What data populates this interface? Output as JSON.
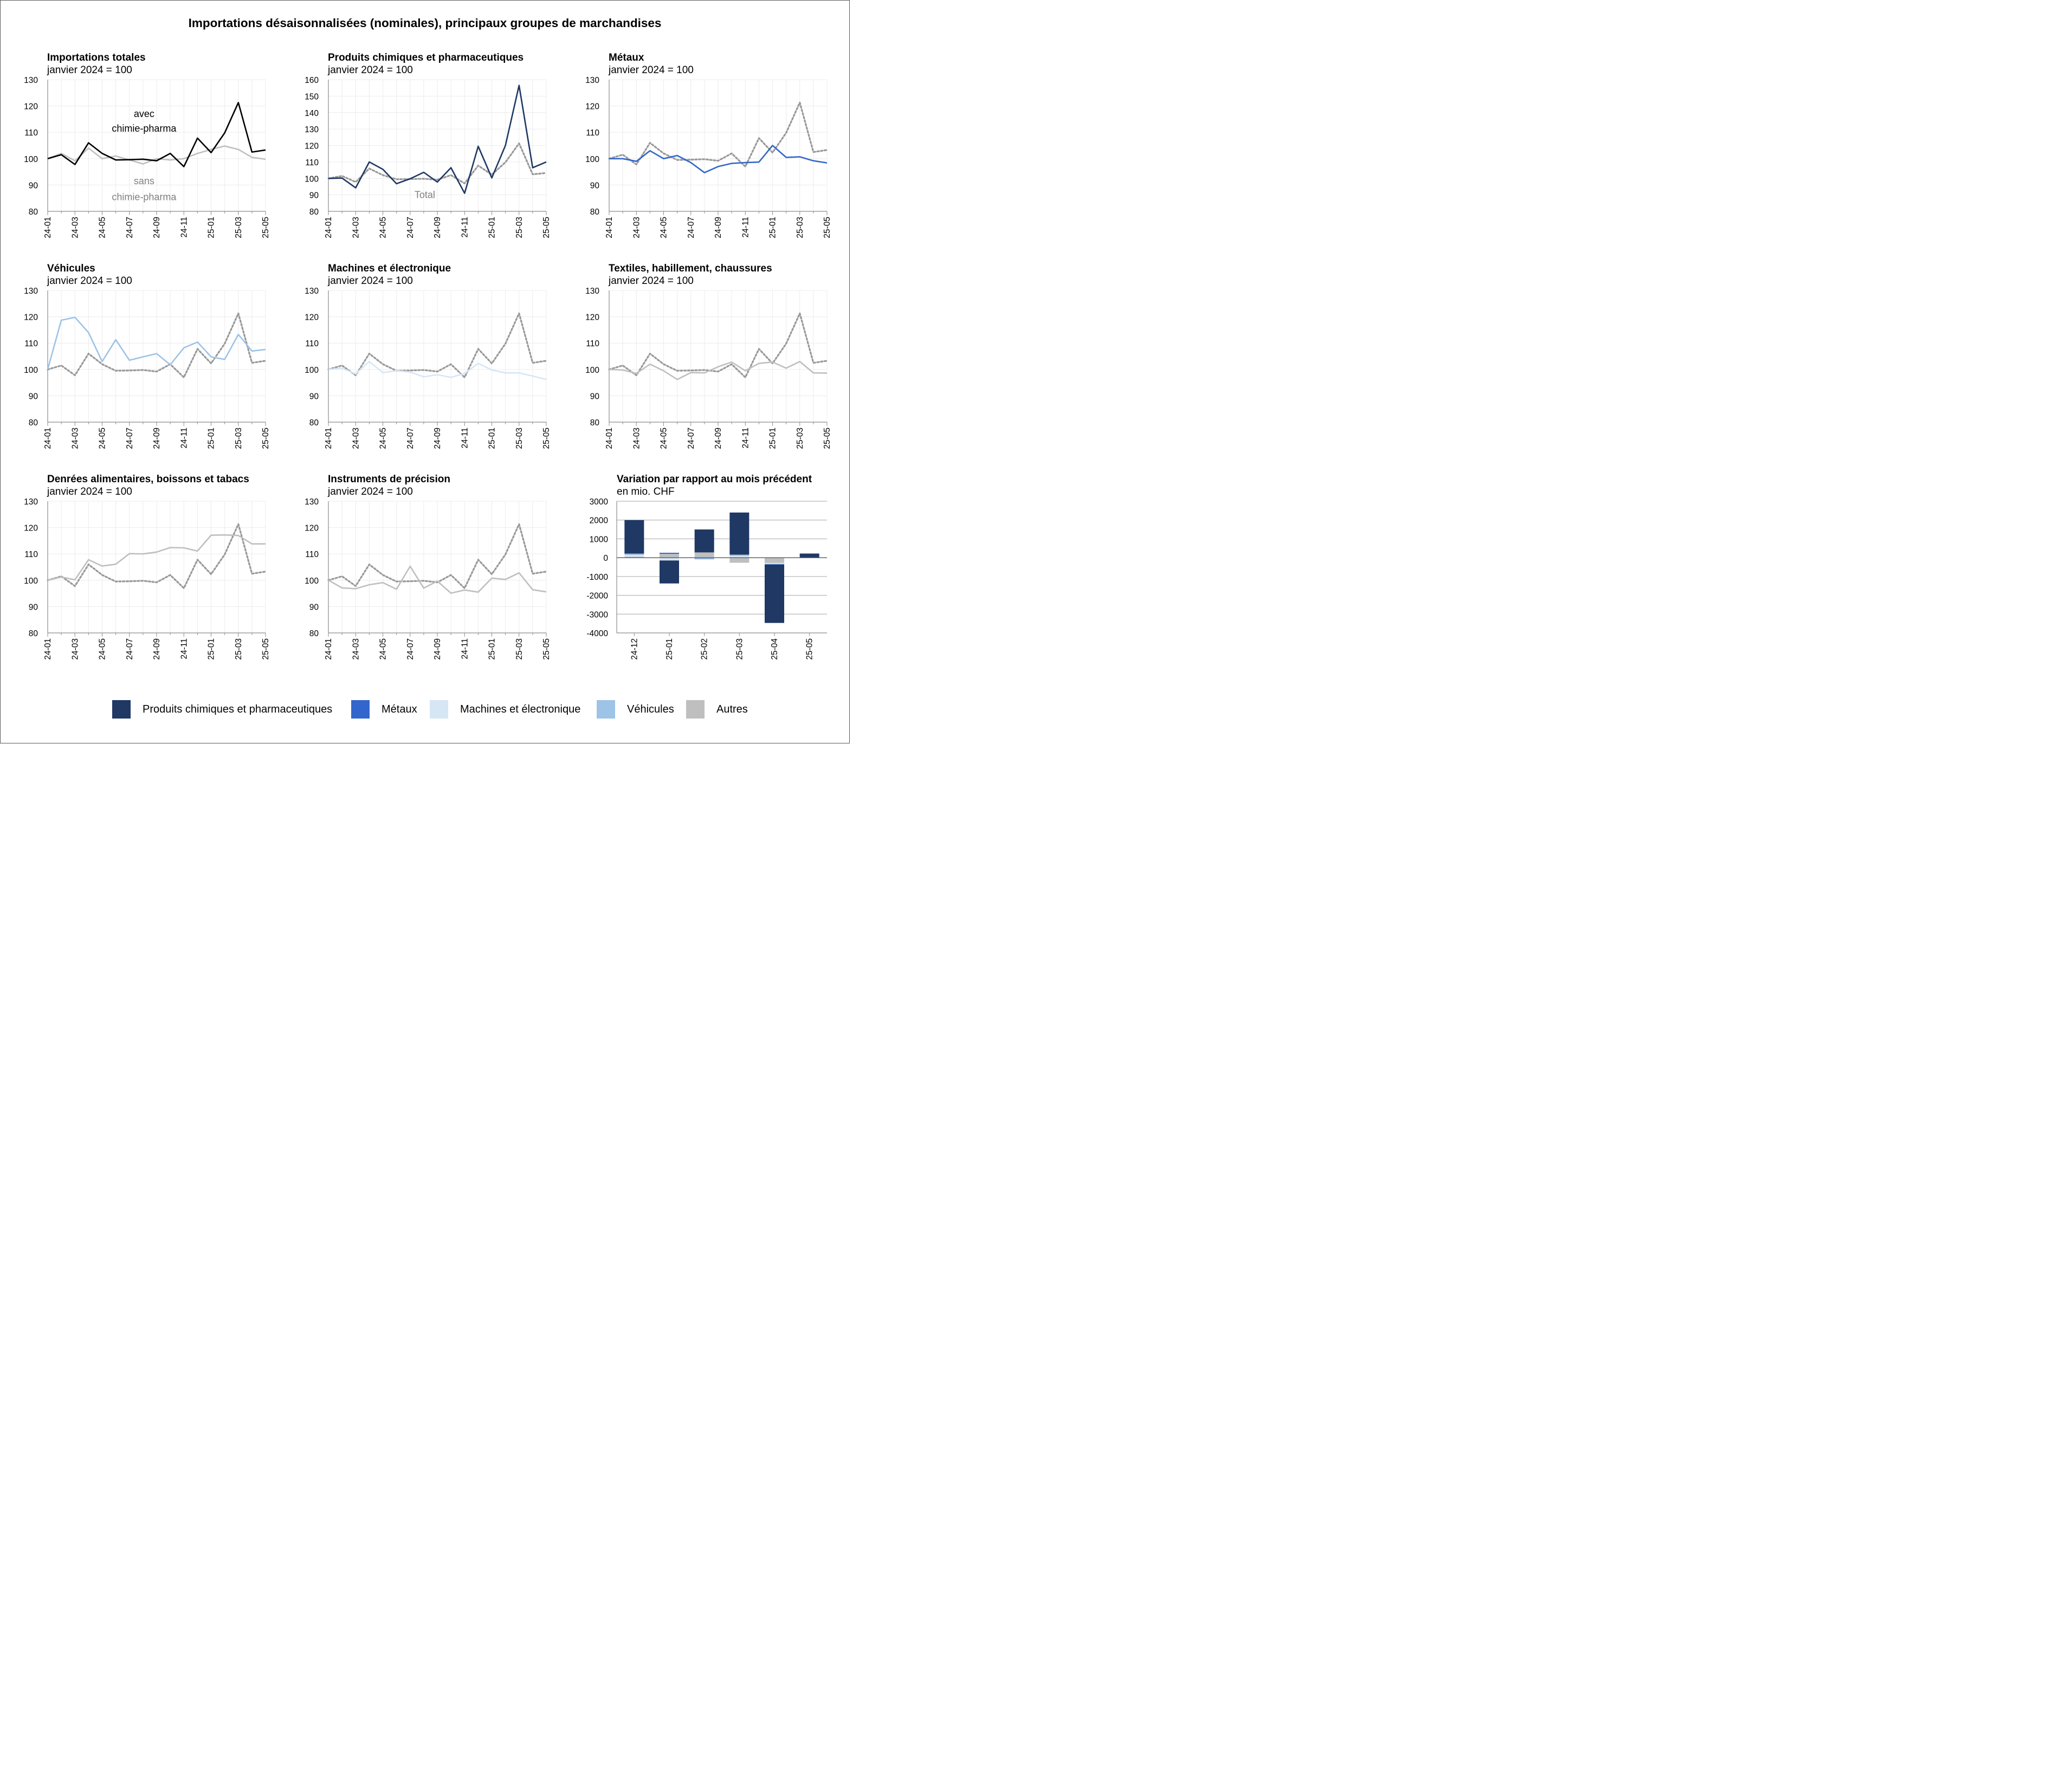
{
  "title": "Importations désaisonnalisées (nominales), principaux groupes de marchandises",
  "colors": {
    "chem": "#1f3864",
    "metal": "#3366cc",
    "mach": "#d6e6f5",
    "veh": "#9dc3e6",
    "other": "#bfbfbf",
    "total": "#000000",
    "grey": "#999999"
  },
  "chart_data": [
    {
      "type": "line",
      "title": "Importations totales",
      "subtitle": "janvier 2024 = 100",
      "x": [
        "24-01",
        "24-02",
        "24-03",
        "24-04",
        "24-05",
        "24-06",
        "24-07",
        "24-08",
        "24-09",
        "24-10",
        "24-11",
        "24-12",
        "25-01",
        "25-02",
        "25-03",
        "25-04",
        "25-05"
      ],
      "xticks": [
        "24-01",
        "24-03",
        "24-05",
        "24-07",
        "24-09",
        "24-11",
        "25-01",
        "25-03",
        "25-05"
      ],
      "ylim": [
        80,
        130
      ],
      "yticks": [
        80,
        90,
        100,
        110,
        120,
        130
      ],
      "series": [
        {
          "name": "sans chimie-pharma",
          "color": "#bfbfbf",
          "dash": false,
          "values": [
            100,
            102,
            99.2,
            104,
            100,
            101,
            99.5,
            98,
            100,
            99.5,
            100,
            102,
            103.5,
            104.8,
            103.5,
            100.5,
            99.8
          ]
        },
        {
          "name": "avec chimie-pharma",
          "color": "#000000",
          "dash": false,
          "values": [
            100,
            101.5,
            97.8,
            106,
            102,
            99.5,
            99.6,
            99.8,
            99.2,
            102,
            97,
            107.8,
            102.3,
            109.8,
            121.3,
            102.5,
            103.3
          ]
        }
      ],
      "annotations": [
        {
          "text": "avec",
          "color": "#000000",
          "x": "24-08",
          "y": 117
        },
        {
          "text": "chimie-pharma",
          "color": "#000000",
          "x": "24-08",
          "y": 111.5
        },
        {
          "text": "sans",
          "color": "#808080",
          "x": "24-08",
          "y": 91.5
        },
        {
          "text": "chimie-pharma",
          "color": "#808080",
          "x": "24-08",
          "y": 85.5
        }
      ]
    },
    {
      "type": "line",
      "title": "Produits chimiques et pharmaceutiques",
      "subtitle": "janvier 2024 = 100",
      "x": [
        "24-01",
        "24-02",
        "24-03",
        "24-04",
        "24-05",
        "24-06",
        "24-07",
        "24-08",
        "24-09",
        "24-10",
        "24-11",
        "24-12",
        "25-01",
        "25-02",
        "25-03",
        "25-04",
        "25-05"
      ],
      "xticks": [
        "24-01",
        "24-03",
        "24-05",
        "24-07",
        "24-09",
        "24-11",
        "25-01",
        "25-03",
        "25-05"
      ],
      "ylim": [
        80,
        160
      ],
      "yticks": [
        80,
        90,
        100,
        110,
        120,
        130,
        140,
        150,
        160
      ],
      "series": [
        {
          "name": "Total",
          "color": "#999999",
          "dash": true,
          "values": [
            100,
            101.5,
            97.8,
            106,
            102,
            99.5,
            99.6,
            99.8,
            99.2,
            102,
            97,
            107.8,
            102.3,
            109.8,
            121.3,
            102.5,
            103.3
          ]
        },
        {
          "name": "Produits chimiques et pharmaceutiques",
          "color": "#1f3864",
          "dash": false,
          "values": [
            100,
            100.2,
            94.3,
            110,
            105.5,
            96.8,
            99.8,
            103.7,
            97.8,
            106.5,
            91,
            119.5,
            100.3,
            120,
            156.5,
            106.5,
            110
          ]
        }
      ],
      "annotations": [
        {
          "text": "Total",
          "color": "#808080",
          "x": "24-08",
          "y": 90
        }
      ]
    },
    {
      "type": "line",
      "title": "Métaux",
      "subtitle": "janvier 2024 = 100",
      "x": [
        "24-01",
        "24-02",
        "24-03",
        "24-04",
        "24-05",
        "24-06",
        "24-07",
        "24-08",
        "24-09",
        "24-10",
        "24-11",
        "24-12",
        "25-01",
        "25-02",
        "25-03",
        "25-04",
        "25-05"
      ],
      "xticks": [
        "24-01",
        "24-03",
        "24-05",
        "24-07",
        "24-09",
        "24-11",
        "25-01",
        "25-03",
        "25-05"
      ],
      "ylim": [
        80,
        130
      ],
      "yticks": [
        80,
        90,
        100,
        110,
        120,
        130
      ],
      "series": [
        {
          "name": "Total",
          "color": "#999999",
          "dash": true,
          "values": [
            100,
            101.5,
            97.8,
            106,
            102,
            99.5,
            99.6,
            99.8,
            99.2,
            102,
            97,
            107.8,
            102.3,
            109.8,
            121.3,
            102.5,
            103.3
          ]
        },
        {
          "name": "Métaux",
          "color": "#3366cc",
          "dash": false,
          "values": [
            100,
            100,
            99,
            103,
            100,
            101.2,
            98.5,
            94.7,
            97,
            98.2,
            98.5,
            98.7,
            105,
            100.5,
            100.7,
            99.2,
            98.4
          ]
        }
      ],
      "annotations": []
    },
    {
      "type": "line",
      "title": "Véhicules",
      "subtitle": "janvier 2024 = 100",
      "x": [
        "24-01",
        "24-02",
        "24-03",
        "24-04",
        "24-05",
        "24-06",
        "24-07",
        "24-08",
        "24-09",
        "24-10",
        "24-11",
        "24-12",
        "25-01",
        "25-02",
        "25-03",
        "25-04",
        "25-05"
      ],
      "xticks": [
        "24-01",
        "24-03",
        "24-05",
        "24-07",
        "24-09",
        "24-11",
        "25-01",
        "25-03",
        "25-05"
      ],
      "ylim": [
        80,
        130
      ],
      "yticks": [
        80,
        90,
        100,
        110,
        120,
        130
      ],
      "series": [
        {
          "name": "Total",
          "color": "#999999",
          "dash": true,
          "values": [
            100,
            101.5,
            97.8,
            106,
            102,
            99.5,
            99.6,
            99.8,
            99.2,
            102,
            97,
            107.8,
            102.3,
            109.8,
            121.3,
            102.5,
            103.3
          ]
        },
        {
          "name": "Véhicules",
          "color": "#9dc3e6",
          "dash": false,
          "values": [
            100,
            118.7,
            119.8,
            114,
            103,
            111.3,
            103.5,
            104.8,
            106,
            101.8,
            108.2,
            110.4,
            104.8,
            103.8,
            113.3,
            107,
            107.6
          ]
        }
      ],
      "annotations": []
    },
    {
      "type": "line",
      "title": "Machines et électronique",
      "subtitle": "janvier 2024 = 100",
      "x": [
        "24-01",
        "24-02",
        "24-03",
        "24-04",
        "24-05",
        "24-06",
        "24-07",
        "24-08",
        "24-09",
        "24-10",
        "24-11",
        "24-12",
        "25-01",
        "25-02",
        "25-03",
        "25-04",
        "25-05"
      ],
      "xticks": [
        "24-01",
        "24-03",
        "24-05",
        "24-07",
        "24-09",
        "24-11",
        "25-01",
        "25-03",
        "25-05"
      ],
      "ylim": [
        80,
        130
      ],
      "yticks": [
        80,
        90,
        100,
        110,
        120,
        130
      ],
      "series": [
        {
          "name": "Total",
          "color": "#999999",
          "dash": true,
          "values": [
            100,
            101.5,
            97.8,
            106,
            102,
            99.5,
            99.6,
            99.8,
            99.2,
            102,
            97,
            107.8,
            102.3,
            109.8,
            121.3,
            102.5,
            103.3
          ]
        },
        {
          "name": "Machines et électronique",
          "color": "#d6e6f5",
          "dash": false,
          "values": [
            100,
            100.5,
            98.3,
            103,
            98.8,
            99.5,
            99,
            97.2,
            98,
            97,
            98.5,
            102.3,
            99.8,
            98.7,
            98.7,
            97.5,
            96.2
          ]
        }
      ],
      "annotations": []
    },
    {
      "type": "line",
      "title": "Textiles, habillement, chaussures",
      "subtitle": "janvier 2024 = 100",
      "x": [
        "24-01",
        "24-02",
        "24-03",
        "24-04",
        "24-05",
        "24-06",
        "24-07",
        "24-08",
        "24-09",
        "24-10",
        "24-11",
        "24-12",
        "25-01",
        "25-02",
        "25-03",
        "25-04",
        "25-05"
      ],
      "xticks": [
        "24-01",
        "24-03",
        "24-05",
        "24-07",
        "24-09",
        "24-11",
        "25-01",
        "25-03",
        "25-05"
      ],
      "ylim": [
        80,
        130
      ],
      "yticks": [
        80,
        90,
        100,
        110,
        120,
        130
      ],
      "series": [
        {
          "name": "Total",
          "color": "#999999",
          "dash": true,
          "values": [
            100,
            101.5,
            97.8,
            106,
            102,
            99.5,
            99.6,
            99.8,
            99.2,
            102,
            97,
            107.8,
            102.3,
            109.8,
            121.3,
            102.5,
            103.3
          ]
        },
        {
          "name": "Textiles, habillement, chaussures",
          "color": "#bfbfbf",
          "dash": false,
          "values": [
            100,
            99.8,
            98.5,
            102,
            99.5,
            96.2,
            98.8,
            98.7,
            101,
            102.8,
            99.5,
            102.3,
            102.8,
            100.5,
            103,
            98.7,
            98.6
          ]
        }
      ],
      "annotations": []
    },
    {
      "type": "line",
      "title": "Denrées alimentaires, boissons et tabacs",
      "subtitle": "janvier 2024 = 100",
      "x": [
        "24-01",
        "24-02",
        "24-03",
        "24-04",
        "24-05",
        "24-06",
        "24-07",
        "24-08",
        "24-09",
        "24-10",
        "24-11",
        "24-12",
        "25-01",
        "25-02",
        "25-03",
        "25-04",
        "25-05"
      ],
      "xticks": [
        "24-01",
        "24-03",
        "24-05",
        "24-07",
        "24-09",
        "24-11",
        "25-01",
        "25-03",
        "25-05"
      ],
      "ylim": [
        80,
        130
      ],
      "yticks": [
        80,
        90,
        100,
        110,
        120,
        130
      ],
      "series": [
        {
          "name": "Total",
          "color": "#999999",
          "dash": true,
          "values": [
            100,
            101.5,
            97.8,
            106,
            102,
            99.5,
            99.6,
            99.8,
            99.2,
            102,
            97,
            107.8,
            102.3,
            109.8,
            121.3,
            102.5,
            103.3
          ]
        },
        {
          "name": "Denrées alimentaires, boissons et tabacs",
          "color": "#bfbfbf",
          "dash": false,
          "values": [
            100,
            101.2,
            100.2,
            107.8,
            105.4,
            106.1,
            110.1,
            110,
            110.7,
            112.4,
            112.3,
            111.1,
            117.1,
            117.2,
            117,
            113.8,
            113.8
          ]
        }
      ],
      "annotations": []
    },
    {
      "type": "line",
      "title": "Instruments de précision",
      "subtitle": "janvier 2024 = 100",
      "x": [
        "24-01",
        "24-02",
        "24-03",
        "24-04",
        "24-05",
        "24-06",
        "24-07",
        "24-08",
        "24-09",
        "24-10",
        "24-11",
        "24-12",
        "25-01",
        "25-02",
        "25-03",
        "25-04",
        "25-05"
      ],
      "xticks": [
        "24-01",
        "24-03",
        "24-05",
        "24-07",
        "24-09",
        "24-11",
        "25-01",
        "25-03",
        "25-05"
      ],
      "ylim": [
        80,
        130
      ],
      "yticks": [
        80,
        90,
        100,
        110,
        120,
        130
      ],
      "series": [
        {
          "name": "Total",
          "color": "#999999",
          "dash": true,
          "values": [
            100,
            101.5,
            97.8,
            106,
            102,
            99.5,
            99.6,
            99.8,
            99.2,
            102,
            97,
            107.8,
            102.3,
            109.8,
            121.3,
            102.5,
            103.3
          ]
        },
        {
          "name": "Instruments de précision",
          "color": "#bfbfbf",
          "dash": false,
          "values": [
            100,
            97.1,
            96.8,
            98.3,
            99.1,
            96.6,
            105.3,
            97,
            99.7,
            95.1,
            96.3,
            95.5,
            100.8,
            100.3,
            102.8,
            96.4,
            95.6
          ]
        }
      ],
      "annotations": []
    },
    {
      "type": "bar",
      "stacked": true,
      "title": "Variation par rapport au mois précédent",
      "subtitle": "en mio. CHF",
      "categories": [
        "24-12",
        "25-01",
        "25-02",
        "25-03",
        "25-04",
        "25-05"
      ],
      "ylim": [
        -4000,
        3000
      ],
      "yticks": [
        -4000,
        -3000,
        -2000,
        -1000,
        0,
        1000,
        2000,
        3000
      ],
      "series": [
        {
          "name": "Autres",
          "color": "#bfbfbf",
          "values": [
            50,
            200,
            280,
            -270,
            -280,
            0
          ]
        },
        {
          "name": "Machines et électronique",
          "color": "#d6e6f5",
          "values": [
            100,
            -150,
            -30,
            100,
            -50,
            0
          ]
        },
        {
          "name": "Véhicules",
          "color": "#9dc3e6",
          "values": [
            50,
            0,
            -30,
            60,
            -20,
            0
          ]
        },
        {
          "name": "Métaux",
          "color": "#3366cc",
          "values": [
            30,
            60,
            -20,
            0,
            -20,
            0
          ]
        },
        {
          "name": "Produits chimiques et pharmaceutiques",
          "color": "#1f3864",
          "values": [
            1770,
            -1220,
            1220,
            2240,
            -3100,
            220
          ]
        }
      ]
    }
  ],
  "legend": [
    {
      "label": "Produits chimiques et pharmaceutiques",
      "color": "#1f3864"
    },
    {
      "label": "Métaux",
      "color": "#3366cc"
    },
    {
      "label": "Machines et électronique",
      "color": "#d6e6f5"
    },
    {
      "label": "Véhicules",
      "color": "#9dc3e6"
    },
    {
      "label": "Autres",
      "color": "#bfbfbf"
    }
  ]
}
